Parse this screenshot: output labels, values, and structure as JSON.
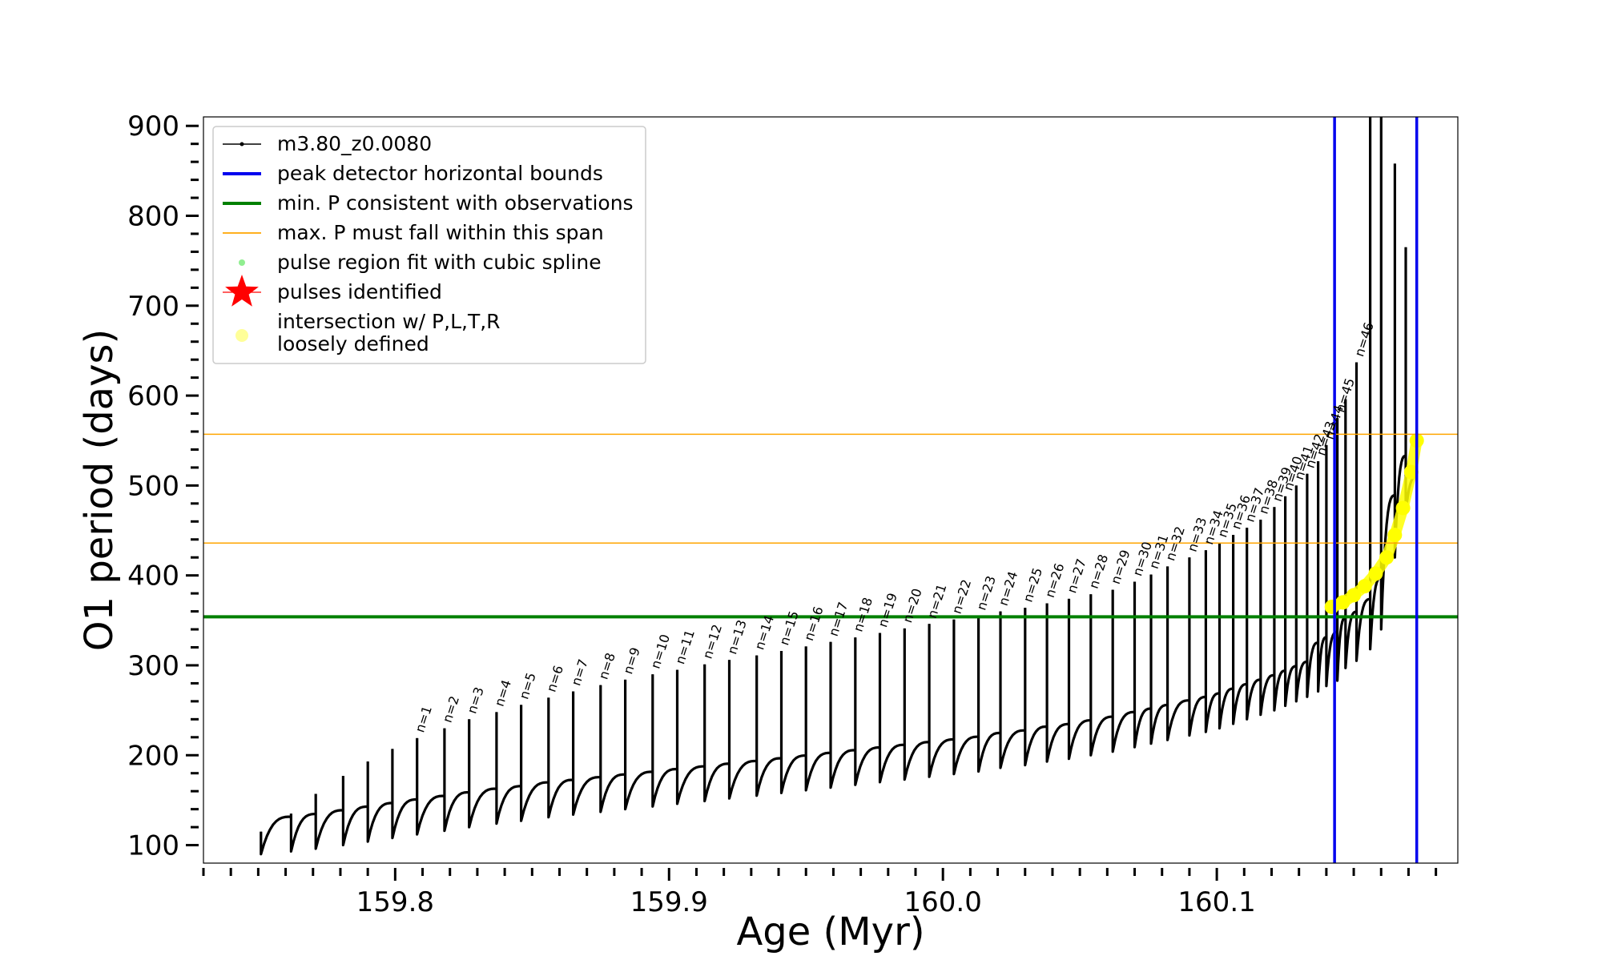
{
  "chart_data": {
    "type": "line",
    "xlabel": "Age (Myr)",
    "ylabel": "O1 period (days)",
    "xlim": [
      159.73,
      160.188
    ],
    "ylim": [
      80,
      910
    ],
    "x_ticks": [
      159.8,
      159.9,
      160.0,
      160.1
    ],
    "x_tick_labels": [
      "159.8",
      "159.9",
      "160.0",
      "160.1"
    ],
    "y_ticks": [
      100,
      200,
      300,
      400,
      500,
      600,
      700,
      800,
      900
    ],
    "y_tick_labels": [
      "100",
      "200",
      "300",
      "400",
      "500",
      "600",
      "700",
      "800",
      "900"
    ],
    "x_minor_step": 0.01,
    "y_minor_step": 20,
    "grid": false,
    "legend_placement": "top-left",
    "legend": [
      {
        "label": "m3.80_z0.0080",
        "kind": "line-marker",
        "color": "#000000"
      },
      {
        "label": "peak detector horizontal bounds",
        "kind": "line",
        "color": "#0000ee"
      },
      {
        "label": "min. P consistent with observations",
        "kind": "line",
        "color": "#008000"
      },
      {
        "label": "max. P must fall within this span",
        "kind": "line",
        "color": "#ffa500"
      },
      {
        "label": "pulse region fit with cubic spline",
        "kind": "dot",
        "color": "#90ee90"
      },
      {
        "label": "pulses identified",
        "kind": "star",
        "color": "#ff0000"
      },
      {
        "label": "intersection w/ P,L,T,R\nloosely defined",
        "kind": "dot",
        "color": "#ffff99"
      }
    ],
    "vertical_lines": {
      "color": "#0000ee",
      "x": [
        160.143,
        160.173
      ]
    },
    "horizontal_lines": [
      {
        "y": 354,
        "color": "#008000",
        "role": "min. P consistent with observations"
      },
      {
        "y": 436,
        "color": "#ffa500",
        "role": "max. P span lower"
      },
      {
        "y": 557,
        "color": "#ffa500",
        "role": "max. P span upper"
      }
    ],
    "series": [
      {
        "name": "m3.80_z0.0080",
        "color": "#000000",
        "pulses": [
          {
            "label": "",
            "x": 159.751,
            "peak": 115,
            "min": 90
          },
          {
            "label": "",
            "x": 159.762,
            "peak": 135,
            "min": 93
          },
          {
            "label": "",
            "x": 159.771,
            "peak": 157,
            "min": 96
          },
          {
            "label": "",
            "x": 159.781,
            "peak": 177,
            "min": 100
          },
          {
            "label": "",
            "x": 159.79,
            "peak": 193,
            "min": 104
          },
          {
            "label": "",
            "x": 159.799,
            "peak": 207,
            "min": 108
          },
          {
            "label": "n=1",
            "x": 159.808,
            "peak": 219,
            "min": 112
          },
          {
            "label": "n=2",
            "x": 159.818,
            "peak": 230,
            "min": 116
          },
          {
            "label": "n=3",
            "x": 159.827,
            "peak": 240,
            "min": 120
          },
          {
            "label": "n=4",
            "x": 159.837,
            "peak": 248,
            "min": 124
          },
          {
            "label": "n=5",
            "x": 159.846,
            "peak": 256,
            "min": 127
          },
          {
            "label": "n=6",
            "x": 159.856,
            "peak": 264,
            "min": 131
          },
          {
            "label": "n=7",
            "x": 159.865,
            "peak": 271,
            "min": 134
          },
          {
            "label": "n=8",
            "x": 159.875,
            "peak": 278,
            "min": 137
          },
          {
            "label": "n=9",
            "x": 159.884,
            "peak": 284,
            "min": 140
          },
          {
            "label": "n=10",
            "x": 159.894,
            "peak": 290,
            "min": 143
          },
          {
            "label": "n=11",
            "x": 159.903,
            "peak": 295,
            "min": 146
          },
          {
            "label": "n=12",
            "x": 159.913,
            "peak": 301,
            "min": 149
          },
          {
            "label": "n=13",
            "x": 159.922,
            "peak": 306,
            "min": 152
          },
          {
            "label": "n=14",
            "x": 159.932,
            "peak": 311,
            "min": 155
          },
          {
            "label": "n=15",
            "x": 159.941,
            "peak": 316,
            "min": 158
          },
          {
            "label": "n=16",
            "x": 159.95,
            "peak": 321,
            "min": 161
          },
          {
            "label": "n=17",
            "x": 159.959,
            "peak": 326,
            "min": 164
          },
          {
            "label": "n=18",
            "x": 159.968,
            "peak": 331,
            "min": 167
          },
          {
            "label": "n=19",
            "x": 159.977,
            "peak": 336,
            "min": 170
          },
          {
            "label": "n=20",
            "x": 159.986,
            "peak": 341,
            "min": 173
          },
          {
            "label": "n=21",
            "x": 159.995,
            "peak": 346,
            "min": 176
          },
          {
            "label": "n=22",
            "x": 160.004,
            "peak": 351,
            "min": 179
          },
          {
            "label": "n=23",
            "x": 160.013,
            "peak": 355,
            "min": 182
          },
          {
            "label": "n=24",
            "x": 160.021,
            "peak": 360,
            "min": 186
          },
          {
            "label": "n=25",
            "x": 160.03,
            "peak": 364,
            "min": 189
          },
          {
            "label": "n=26",
            "x": 160.038,
            "peak": 369,
            "min": 193
          },
          {
            "label": "n=27",
            "x": 160.046,
            "peak": 374,
            "min": 196
          },
          {
            "label": "n=28",
            "x": 160.054,
            "peak": 379,
            "min": 200
          },
          {
            "label": "n=29",
            "x": 160.062,
            "peak": 384,
            "min": 204
          },
          {
            "label": "n=30",
            "x": 160.07,
            "peak": 393,
            "min": 209
          },
          {
            "label": "n=31",
            "x": 160.076,
            "peak": 401,
            "min": 213
          },
          {
            "label": "n=32",
            "x": 160.082,
            "peak": 410,
            "min": 217
          },
          {
            "label": "n=33",
            "x": 160.09,
            "peak": 420,
            "min": 222
          },
          {
            "label": "n=34",
            "x": 160.096,
            "peak": 428,
            "min": 226
          },
          {
            "label": "n=35",
            "x": 160.101,
            "peak": 436,
            "min": 230
          },
          {
            "label": "n=36",
            "x": 160.106,
            "peak": 445,
            "min": 235
          },
          {
            "label": "n=37",
            "x": 160.111,
            "peak": 453,
            "min": 240
          },
          {
            "label": "n=38",
            "x": 160.116,
            "peak": 462,
            "min": 245
          },
          {
            "label": "n=39",
            "x": 160.121,
            "peak": 476,
            "min": 250
          },
          {
            "label": "n=40",
            "x": 160.125,
            "peak": 488,
            "min": 255
          },
          {
            "label": "n=41",
            "x": 160.129,
            "peak": 500,
            "min": 260
          },
          {
            "label": "n=42",
            "x": 160.133,
            "peak": 513,
            "min": 265
          },
          {
            "label": "n=43",
            "x": 160.137,
            "peak": 527,
            "min": 271
          },
          {
            "label": "n=44",
            "x": 160.14,
            "peak": 545,
            "min": 277
          },
          {
            "label": "n=45",
            "x": 160.144,
            "peak": 575,
            "min": 283
          },
          {
            "label": "",
            "x": 160.147,
            "peak": 596,
            "min": 297
          },
          {
            "label": "n=46",
            "x": 160.151,
            "peak": 637,
            "min": 305
          },
          {
            "label": "",
            "x": 160.156,
            "peak": 910,
            "min": 318
          },
          {
            "label": "",
            "x": 160.16,
            "peak": 910,
            "min": 340
          },
          {
            "label": "",
            "x": 160.165,
            "peak": 858,
            "min": 420
          },
          {
            "label": "",
            "x": 160.169,
            "peak": 765,
            "min": 470
          }
        ]
      },
      {
        "name": "intersection w/ P,L,T,R\nloosely defined",
        "color": "#ffff00",
        "x": [
          160.142,
          160.146,
          160.15,
          160.154,
          160.158,
          160.162,
          160.165,
          160.168,
          160.171,
          160.173
        ],
        "y": [
          365,
          370,
          378,
          388,
          402,
          420,
          445,
          475,
          515,
          550
        ]
      }
    ]
  }
}
